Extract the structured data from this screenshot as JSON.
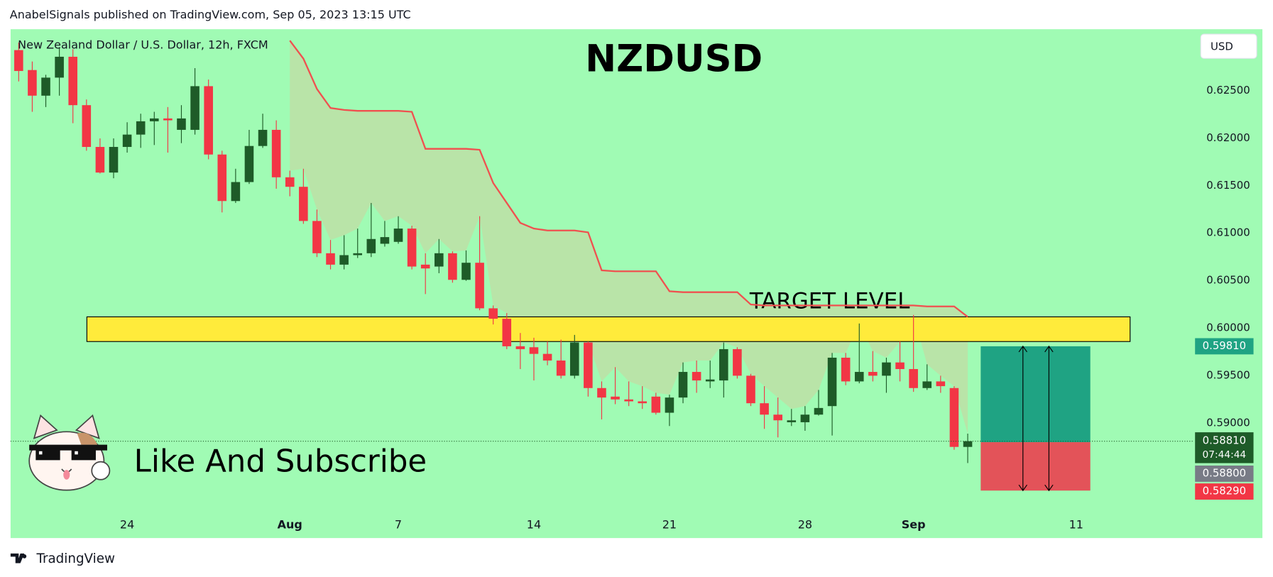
{
  "header": "AnabelSignals published on TradingView.com, Sep 05, 2023 13:15 UTC",
  "caption": "Like And Subscribe",
  "footer": "TradingView",
  "chart_data": {
    "type": "candlestick",
    "title": "NZDUSD",
    "subtitle": "New Zealand Dollar / U.S. Dollar, 12h, FXCM",
    "currency": "USD",
    "categories": [
      null,
      null,
      null,
      null,
      null,
      null,
      null,
      null,
      "24",
      null,
      null,
      null,
      null,
      null,
      null,
      null,
      null,
      null,
      null,
      null,
      "Aug",
      null,
      null,
      null,
      null,
      null,
      null,
      null,
      "7",
      null,
      null,
      null,
      null,
      null,
      null,
      null,
      null,
      null,
      "14",
      null,
      null,
      null,
      null,
      null,
      null,
      null,
      null,
      null,
      "21",
      null,
      null,
      null,
      null,
      null,
      null,
      null,
      null,
      null,
      "28",
      null,
      null,
      null,
      null,
      null,
      null,
      null,
      "Sep",
      null,
      null,
      null,
      null,
      null,
      null,
      null,
      null,
      null,
      null,
      null,
      "11"
    ],
    "open": [
      0.6293,
      0.6272,
      0.6245,
      0.6264,
      0.6286,
      0.6235,
      0.6191,
      0.6164,
      0.6191,
      0.6204,
      0.6218,
      0.6221,
      0.6209,
      0.6209,
      0.6255,
      0.6183,
      0.6134,
      0.6154,
      0.6192,
      0.6209,
      0.6159,
      0.6149,
      0.6113,
      0.6079,
      0.6067,
      0.6077,
      0.6079,
      0.6089,
      0.6091,
      0.6105,
      0.6067,
      0.6065,
      0.6079,
      0.6051,
      0.6069,
      0.6021,
      0.601,
      0.5981,
      0.598,
      0.5973,
      0.5966,
      0.595,
      0.5985,
      0.5937,
      0.5928,
      0.5925,
      0.5923,
      0.5928,
      0.5911,
      0.5927,
      0.5954,
      0.5944,
      0.5945,
      0.5978,
      0.595,
      0.5921,
      0.5909,
      0.5901,
      0.5901,
      0.5909,
      0.5918,
      0.5969,
      0.5944,
      0.5954,
      0.595,
      0.5964,
      0.5957,
      0.5937,
      0.5944,
      0.5937,
      0.5875,
      null,
      null,
      null,
      null,
      null,
      null,
      null,
      null
    ],
    "high": [
      0.6301,
      0.6281,
      0.6267,
      0.6296,
      0.6294,
      0.6241,
      0.62,
      0.62,
      0.6217,
      0.6226,
      0.6228,
      0.6233,
      0.6235,
      0.6274,
      0.6262,
      0.6187,
      0.6168,
      0.6209,
      0.6226,
      0.6219,
      0.6166,
      0.6168,
      0.6125,
      0.6093,
      0.6098,
      0.6105,
      0.6132,
      0.6113,
      0.6118,
      0.6108,
      0.6079,
      0.6094,
      0.6081,
      0.6082,
      0.6118,
      0.6024,
      0.6016,
      0.5995,
      0.599,
      0.5986,
      0.5988,
      0.5993,
      0.5986,
      0.5944,
      0.5959,
      0.5944,
      0.5939,
      0.5932,
      0.593,
      0.5964,
      0.5966,
      0.5966,
      0.5985,
      0.598,
      0.5952,
      0.5939,
      0.5927,
      0.5915,
      0.5918,
      0.5935,
      0.5974,
      0.5974,
      0.6005,
      0.5976,
      0.5969,
      0.5986,
      0.6014,
      0.5962,
      0.595,
      0.5939,
      0.5889,
      null,
      null,
      null,
      null,
      null,
      null,
      null,
      null
    ],
    "low": [
      0.626,
      0.6228,
      0.6233,
      0.6245,
      0.6216,
      0.6187,
      0.6163,
      0.6158,
      0.6185,
      0.619,
      0.6193,
      0.6185,
      0.6195,
      0.6204,
      0.6178,
      0.6122,
      0.6132,
      0.6152,
      0.619,
      0.6147,
      0.6139,
      0.611,
      0.6075,
      0.6062,
      0.6062,
      0.6074,
      0.6075,
      0.6086,
      0.6089,
      0.6062,
      0.6036,
      0.6058,
      0.6048,
      0.605,
      0.6019,
      0.6004,
      0.5978,
      0.5957,
      0.5945,
      0.5961,
      0.5947,
      0.5947,
      0.5928,
      0.5904,
      0.592,
      0.5918,
      0.5915,
      0.5909,
      0.5897,
      0.5921,
      0.5932,
      0.5937,
      0.5927,
      0.5947,
      0.5918,
      0.5894,
      0.5885,
      0.5897,
      0.5892,
      0.5908,
      0.5887,
      0.594,
      0.5942,
      0.5944,
      0.5932,
      0.5944,
      0.5933,
      0.5935,
      0.5932,
      0.5872,
      0.5858,
      null,
      null,
      null,
      null,
      null,
      null,
      null,
      null
    ],
    "close": [
      0.6271,
      0.6245,
      0.6264,
      0.6286,
      0.6235,
      0.6191,
      0.6164,
      0.6191,
      0.6204,
      0.6218,
      0.6221,
      0.6219,
      0.6221,
      0.6255,
      0.6183,
      0.6134,
      0.6154,
      0.6192,
      0.6209,
      0.6159,
      0.6149,
      0.6113,
      0.6079,
      0.6067,
      0.6077,
      0.6079,
      0.6094,
      0.6096,
      0.6105,
      0.6065,
      0.6063,
      0.6079,
      0.6051,
      0.6069,
      0.6021,
      0.601,
      0.5981,
      0.5978,
      0.5973,
      0.5966,
      0.595,
      0.5985,
      0.5937,
      0.5927,
      0.5925,
      0.5923,
      0.5921,
      0.5911,
      0.5927,
      0.5954,
      0.5945,
      0.5946,
      0.5978,
      0.595,
      0.5921,
      0.5909,
      0.5903,
      0.5903,
      0.5909,
      0.5916,
      0.5969,
      0.5944,
      0.5954,
      0.595,
      0.5964,
      0.5957,
      0.5937,
      0.5944,
      0.5939,
      0.5875,
      0.5881,
      null,
      null,
      null,
      null,
      null,
      null,
      null,
      null
    ],
    "up_color": "#1e5b28",
    "down_color": "#f23645",
    "trend_line": {
      "color": "#f0504f",
      "values": [
        null,
        null,
        null,
        null,
        null,
        null,
        null,
        null,
        null,
        null,
        null,
        null,
        null,
        null,
        null,
        null,
        null,
        null,
        null,
        null,
        0.6303,
        0.6284,
        0.6252,
        0.6232,
        0.623,
        0.6229,
        0.6229,
        0.6229,
        0.6229,
        0.6228,
        0.6189,
        0.6189,
        0.6189,
        0.6189,
        0.6188,
        0.6153,
        0.6132,
        0.6111,
        0.6105,
        0.6103,
        0.6103,
        0.6103,
        0.6101,
        0.6061,
        0.606,
        0.606,
        0.606,
        0.606,
        0.6039,
        0.6038,
        0.6038,
        0.6038,
        0.6038,
        0.6038,
        0.6025,
        0.6024,
        0.6024,
        0.6024,
        0.6024,
        0.6024,
        0.6024,
        0.6024,
        0.6024,
        0.6024,
        0.6024,
        0.6024,
        0.6024,
        0.6023,
        0.6023,
        0.6023,
        0.6012,
        null,
        null,
        null,
        null,
        null,
        null,
        null,
        null
      ]
    },
    "zone": {
      "label": "TARGET LEVEL",
      "high": 0.6012,
      "low": 0.5986,
      "color": "#ffeb3b"
    },
    "position": {
      "target": 0.5981,
      "target_label": "0.59810",
      "entry": 0.588,
      "entry_label": "0.58800",
      "stop": 0.5829,
      "stop_label": "0.58290",
      "profit_color": "#1fa383",
      "loss_color": "#e35359"
    },
    "last_price": {
      "value": 0.5881,
      "label": "0.58810",
      "countdown": "07:44:44"
    },
    "ylim": [
      0.5779,
      0.6315
    ],
    "yticks": [
      {
        "value": 0.625,
        "label": "0.62500"
      },
      {
        "value": 0.62,
        "label": "0.62000"
      },
      {
        "value": 0.615,
        "label": "0.61500"
      },
      {
        "value": 0.61,
        "label": "0.61000"
      },
      {
        "value": 0.605,
        "label": "0.60500"
      },
      {
        "value": 0.6,
        "label": "0.60000"
      },
      {
        "value": 0.595,
        "label": "0.59500"
      },
      {
        "value": 0.59,
        "label": "0.59000"
      }
    ],
    "grid": false
  }
}
